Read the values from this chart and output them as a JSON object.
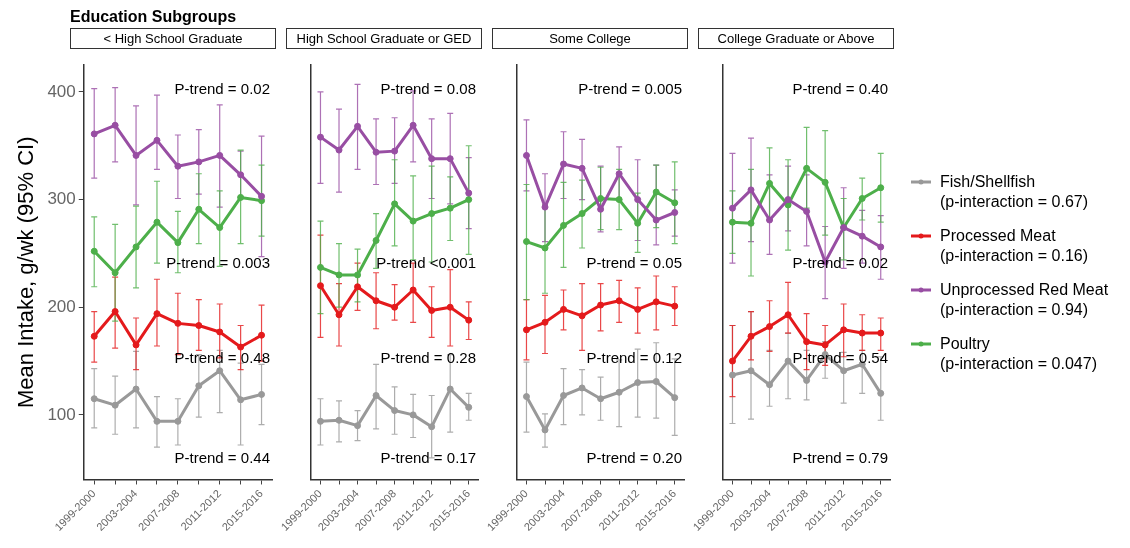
{
  "chart_data": [
    {
      "type": "line",
      "title": "Education Subgroups",
      "subtitle": "< High School Graduate",
      "ylabel": "Mean Intake, g/wk (95% CI)",
      "annotations": [
        "P-trend = 0.02",
        "P-trend = 0.003",
        "P-trend = 0.48",
        "P-trend = 0.44"
      ],
      "categories": [
        "1999-2000",
        null,
        "2003-2004",
        null,
        "2007-2008",
        null,
        "2011-2012",
        null,
        "2015-2016"
      ],
      "ylim": [
        40,
        425
      ],
      "yticks": [
        100,
        200,
        300,
        400
      ],
      "grid": false,
      "marker": "circle",
      "line_style": "solid",
      "series": [
        {
          "color": "#999999",
          "values": [
            115,
            109,
            124,
            94,
            94,
            127,
            141,
            114,
            119
          ],
          "errors": [
            [
              88,
              143
            ],
            [
              82,
              136
            ],
            [
              88,
              159
            ],
            [
              70,
              117
            ],
            [
              72,
              115
            ],
            [
              98,
              156
            ],
            [
              102,
              160
            ],
            [
              72,
              148
            ],
            [
              91,
              147
            ]
          ]
        },
        {
          "color": "#e41a1c",
          "values": [
            173,
            196,
            165,
            194,
            185,
            183,
            177,
            163,
            174
          ],
          "errors": [
            [
              149,
              196
            ],
            [
              162,
              228
            ],
            [
              142,
              190
            ],
            [
              164,
              226
            ],
            [
              156,
              213
            ],
            [
              160,
              207
            ],
            [
              153,
              203
            ],
            [
              142,
              183
            ],
            [
              150,
              202
            ]
          ]
        },
        {
          "color": "#984ea3",
          "values": [
            361,
            369,
            341,
            355,
            331,
            335,
            341,
            323,
            303
          ],
          "errors": [
            [
              320,
              403
            ],
            [
              335,
              404
            ],
            [
              295,
              387
            ],
            [
              328,
              397
            ],
            [
              301,
              360
            ],
            [
              305,
              365
            ],
            [
              293,
              388
            ],
            [
              302,
              345
            ],
            [
              247,
              359
            ]
          ]
        },
        {
          "color": "#4daf4a",
          "values": [
            252,
            232,
            256,
            279,
            260,
            291,
            274,
            302,
            299
          ],
          "errors": [
            [
              219,
              284
            ],
            [
              187,
              277
            ],
            [
              218,
              294
            ],
            [
              241,
              317
            ],
            [
              232,
              289
            ],
            [
              259,
              324
            ],
            [
              238,
              308
            ],
            [
              259,
              346
            ],
            [
              266,
              332
            ]
          ]
        }
      ]
    },
    {
      "type": "line",
      "subtitle": "High School Graduate or GED",
      "tick_labels": "x",
      "annotations": [
        "P-trend = 0.08",
        "P-trend <0.001",
        "P-trend = 0.28",
        "P-trend = 0.17"
      ],
      "categories": [
        "1999-2000",
        null,
        "2003-2004",
        null,
        "2007-2008",
        null,
        "2011-2012",
        null,
        "2015-2016"
      ],
      "ylim": [
        40,
        425
      ],
      "yticks": [
        100,
        200,
        300,
        400
      ],
      "grid": false,
      "marker": "circle",
      "line_style": "solid",
      "series": [
        {
          "color": "#999999",
          "values": [
            94,
            95,
            90,
            118,
            104,
            100,
            89,
            124,
            107
          ],
          "errors": [
            [
              72,
              115
            ],
            [
              75,
              113
            ],
            [
              76,
              104
            ],
            [
              87,
              147
            ],
            [
              82,
              126
            ],
            [
              79,
              119
            ],
            [
              60,
              118
            ],
            [
              84,
              156
            ],
            [
              95,
              120
            ]
          ]
        },
        {
          "color": "#e41a1c",
          "values": [
            220,
            193,
            219,
            206,
            200,
            216,
            197,
            200,
            188
          ],
          "errors": [
            [
              172,
              267
            ],
            [
              164,
              222
            ],
            [
              197,
              241
            ],
            [
              180,
              232
            ],
            [
              188,
              221
            ],
            [
              186,
              241
            ],
            [
              172,
              219
            ],
            [
              164,
              235
            ],
            [
              170,
              205
            ]
          ]
        },
        {
          "color": "#984ea3",
          "values": [
            358,
            346,
            368,
            344,
            345,
            369,
            338,
            338,
            306
          ],
          "errors": [
            [
              315,
              400
            ],
            [
              307,
              384
            ],
            [
              328,
              407
            ],
            [
              314,
              375
            ],
            [
              315,
              376
            ],
            [
              335,
              401
            ],
            [
              301,
              375
            ],
            [
              296,
              380
            ],
            [
              273,
              339
            ]
          ]
        },
        {
          "color": "#4daf4a",
          "values": [
            237,
            230,
            230,
            262,
            296,
            280,
            287,
            292,
            300
          ],
          "errors": [
            [
              194,
              280
            ],
            [
              200,
              259
            ],
            [
              205,
              254
            ],
            [
              236,
              287
            ],
            [
              257,
              337
            ],
            [
              244,
              322
            ],
            [
              242,
              331
            ],
            [
              262,
              321
            ],
            [
              249,
              350
            ]
          ]
        }
      ]
    },
    {
      "type": "line",
      "subtitle": "Some College",
      "tick_labels": "x",
      "annotations": [
        "P-trend = 0.005",
        "P-trend = 0.05",
        "P-trend = 0.12",
        "P-trend = 0.20"
      ],
      "categories": [
        "1999-2000",
        null,
        "2003-2004",
        null,
        "2007-2008",
        null,
        "2011-2012",
        null,
        "2015-2016"
      ],
      "ylim": [
        40,
        425
      ],
      "yticks": [
        100,
        200,
        300,
        400
      ],
      "grid": false,
      "marker": "circle",
      "line_style": "solid",
      "series": [
        {
          "color": "#999999",
          "values": [
            117,
            86,
            118,
            125,
            115,
            121,
            130,
            131,
            116
          ],
          "errors": [
            [
              84,
              149
            ],
            [
              70,
              101
            ],
            [
              91,
              143
            ],
            [
              100,
              142
            ],
            [
              95,
              135
            ],
            [
              89,
              151
            ],
            [
              98,
              161
            ],
            [
              97,
              167
            ],
            [
              81,
              152
            ]
          ]
        },
        {
          "color": "#e41a1c",
          "values": [
            179,
            186,
            198,
            192,
            202,
            206,
            198,
            205,
            201
          ],
          "errors": [
            [
              151,
              207
            ],
            [
              157,
              211
            ],
            [
              179,
              216
            ],
            [
              160,
              222
            ],
            [
              178,
              222
            ],
            [
              186,
              225
            ],
            [
              176,
              218
            ],
            [
              179,
              229
            ],
            [
              183,
              219
            ]
          ]
        },
        {
          "color": "#984ea3",
          "values": [
            341,
            293,
            333,
            329,
            291,
            324,
            300,
            281,
            288
          ],
          "errors": [
            [
              308,
              374
            ],
            [
              261,
              324
            ],
            [
              301,
              363
            ],
            [
              300,
              356
            ],
            [
              270,
              331
            ],
            [
              300,
              349
            ],
            [
              262,
              337
            ],
            [
              258,
              332
            ],
            [
              266,
              309
            ]
          ]
        },
        {
          "color": "#4daf4a",
          "values": [
            261,
            255,
            276,
            287,
            301,
            300,
            278,
            307,
            297
          ],
          "errors": [
            [
              207,
              314
            ],
            [
              213,
              295
            ],
            [
              237,
              316
            ],
            [
              255,
              318
            ],
            [
              272,
              330
            ],
            [
              272,
              328
            ],
            [
              251,
              306
            ],
            [
              274,
              332
            ],
            [
              259,
              335
            ]
          ]
        }
      ]
    },
    {
      "type": "line",
      "subtitle": "College Graduate or Above",
      "tick_labels": "x",
      "annotations": [
        "P-trend = 0.40",
        "P-trend = 0.02",
        "P-trend = 0.54",
        "P-trend = 0.79"
      ],
      "categories": [
        "1999-2000",
        null,
        "2003-2004",
        null,
        "2007-2008",
        null,
        "2011-2012",
        null,
        "2015-2016"
      ],
      "ylim": [
        40,
        425
      ],
      "yticks": [
        100,
        200,
        300,
        400
      ],
      "grid": false,
      "legend": "right",
      "marker": "circle",
      "line_style": "solid",
      "series": [
        {
          "name": "Fish/Shellfish\n(p-interaction = 0.67)",
          "color": "#999999",
          "values": [
            137,
            141,
            128,
            150,
            132,
            156,
            141,
            147,
            120
          ],
          "errors": [
            [
              92,
              183
            ],
            [
              96,
              196
            ],
            [
              108,
              160
            ],
            [
              115,
              176
            ],
            [
              114,
              160
            ],
            [
              134,
              168
            ],
            [
              111,
              158
            ],
            [
              120,
              160
            ],
            [
              95,
              154
            ]
          ]
        },
        {
          "name": "Processed Meat\n(p-interaction = 0.16)",
          "color": "#e41a1c",
          "values": [
            150,
            173,
            182,
            193,
            168,
            165,
            179,
            176,
            176
          ],
          "errors": [
            [
              117,
              183
            ],
            [
              151,
              196
            ],
            [
              159,
              206
            ],
            [
              176,
              223
            ],
            [
              142,
              194
            ],
            [
              146,
              183
            ],
            [
              154,
              203
            ],
            [
              160,
              193
            ],
            [
              160,
              190
            ]
          ]
        },
        {
          "name": "Unprocessed Red Meat\n(p-interaction = 0.94)",
          "color": "#984ea3",
          "values": [
            292,
            309,
            281,
            300,
            289,
            242,
            274,
            266,
            256
          ],
          "errors": [
            [
              241,
              343
            ],
            [
              261,
              357
            ],
            [
              249,
              323
            ],
            [
              271,
              331
            ],
            [
              257,
              323
            ],
            [
              208,
              275
            ],
            [
              236,
              311
            ],
            [
              241,
              290
            ],
            [
              226,
              285
            ]
          ]
        },
        {
          "name": "Poultry\n(p-interaction = 0.047)",
          "color": "#4daf4a",
          "values": [
            279,
            278,
            315,
            295,
            329,
            316,
            274,
            301,
            311
          ],
          "errors": [
            [
              250,
              308
            ],
            [
              229,
              328
            ],
            [
              281,
              348
            ],
            [
              253,
              337
            ],
            [
              292,
              367
            ],
            [
              267,
              364
            ],
            [
              244,
              301
            ],
            [
              281,
              320
            ],
            [
              279,
              343
            ]
          ]
        }
      ]
    }
  ]
}
